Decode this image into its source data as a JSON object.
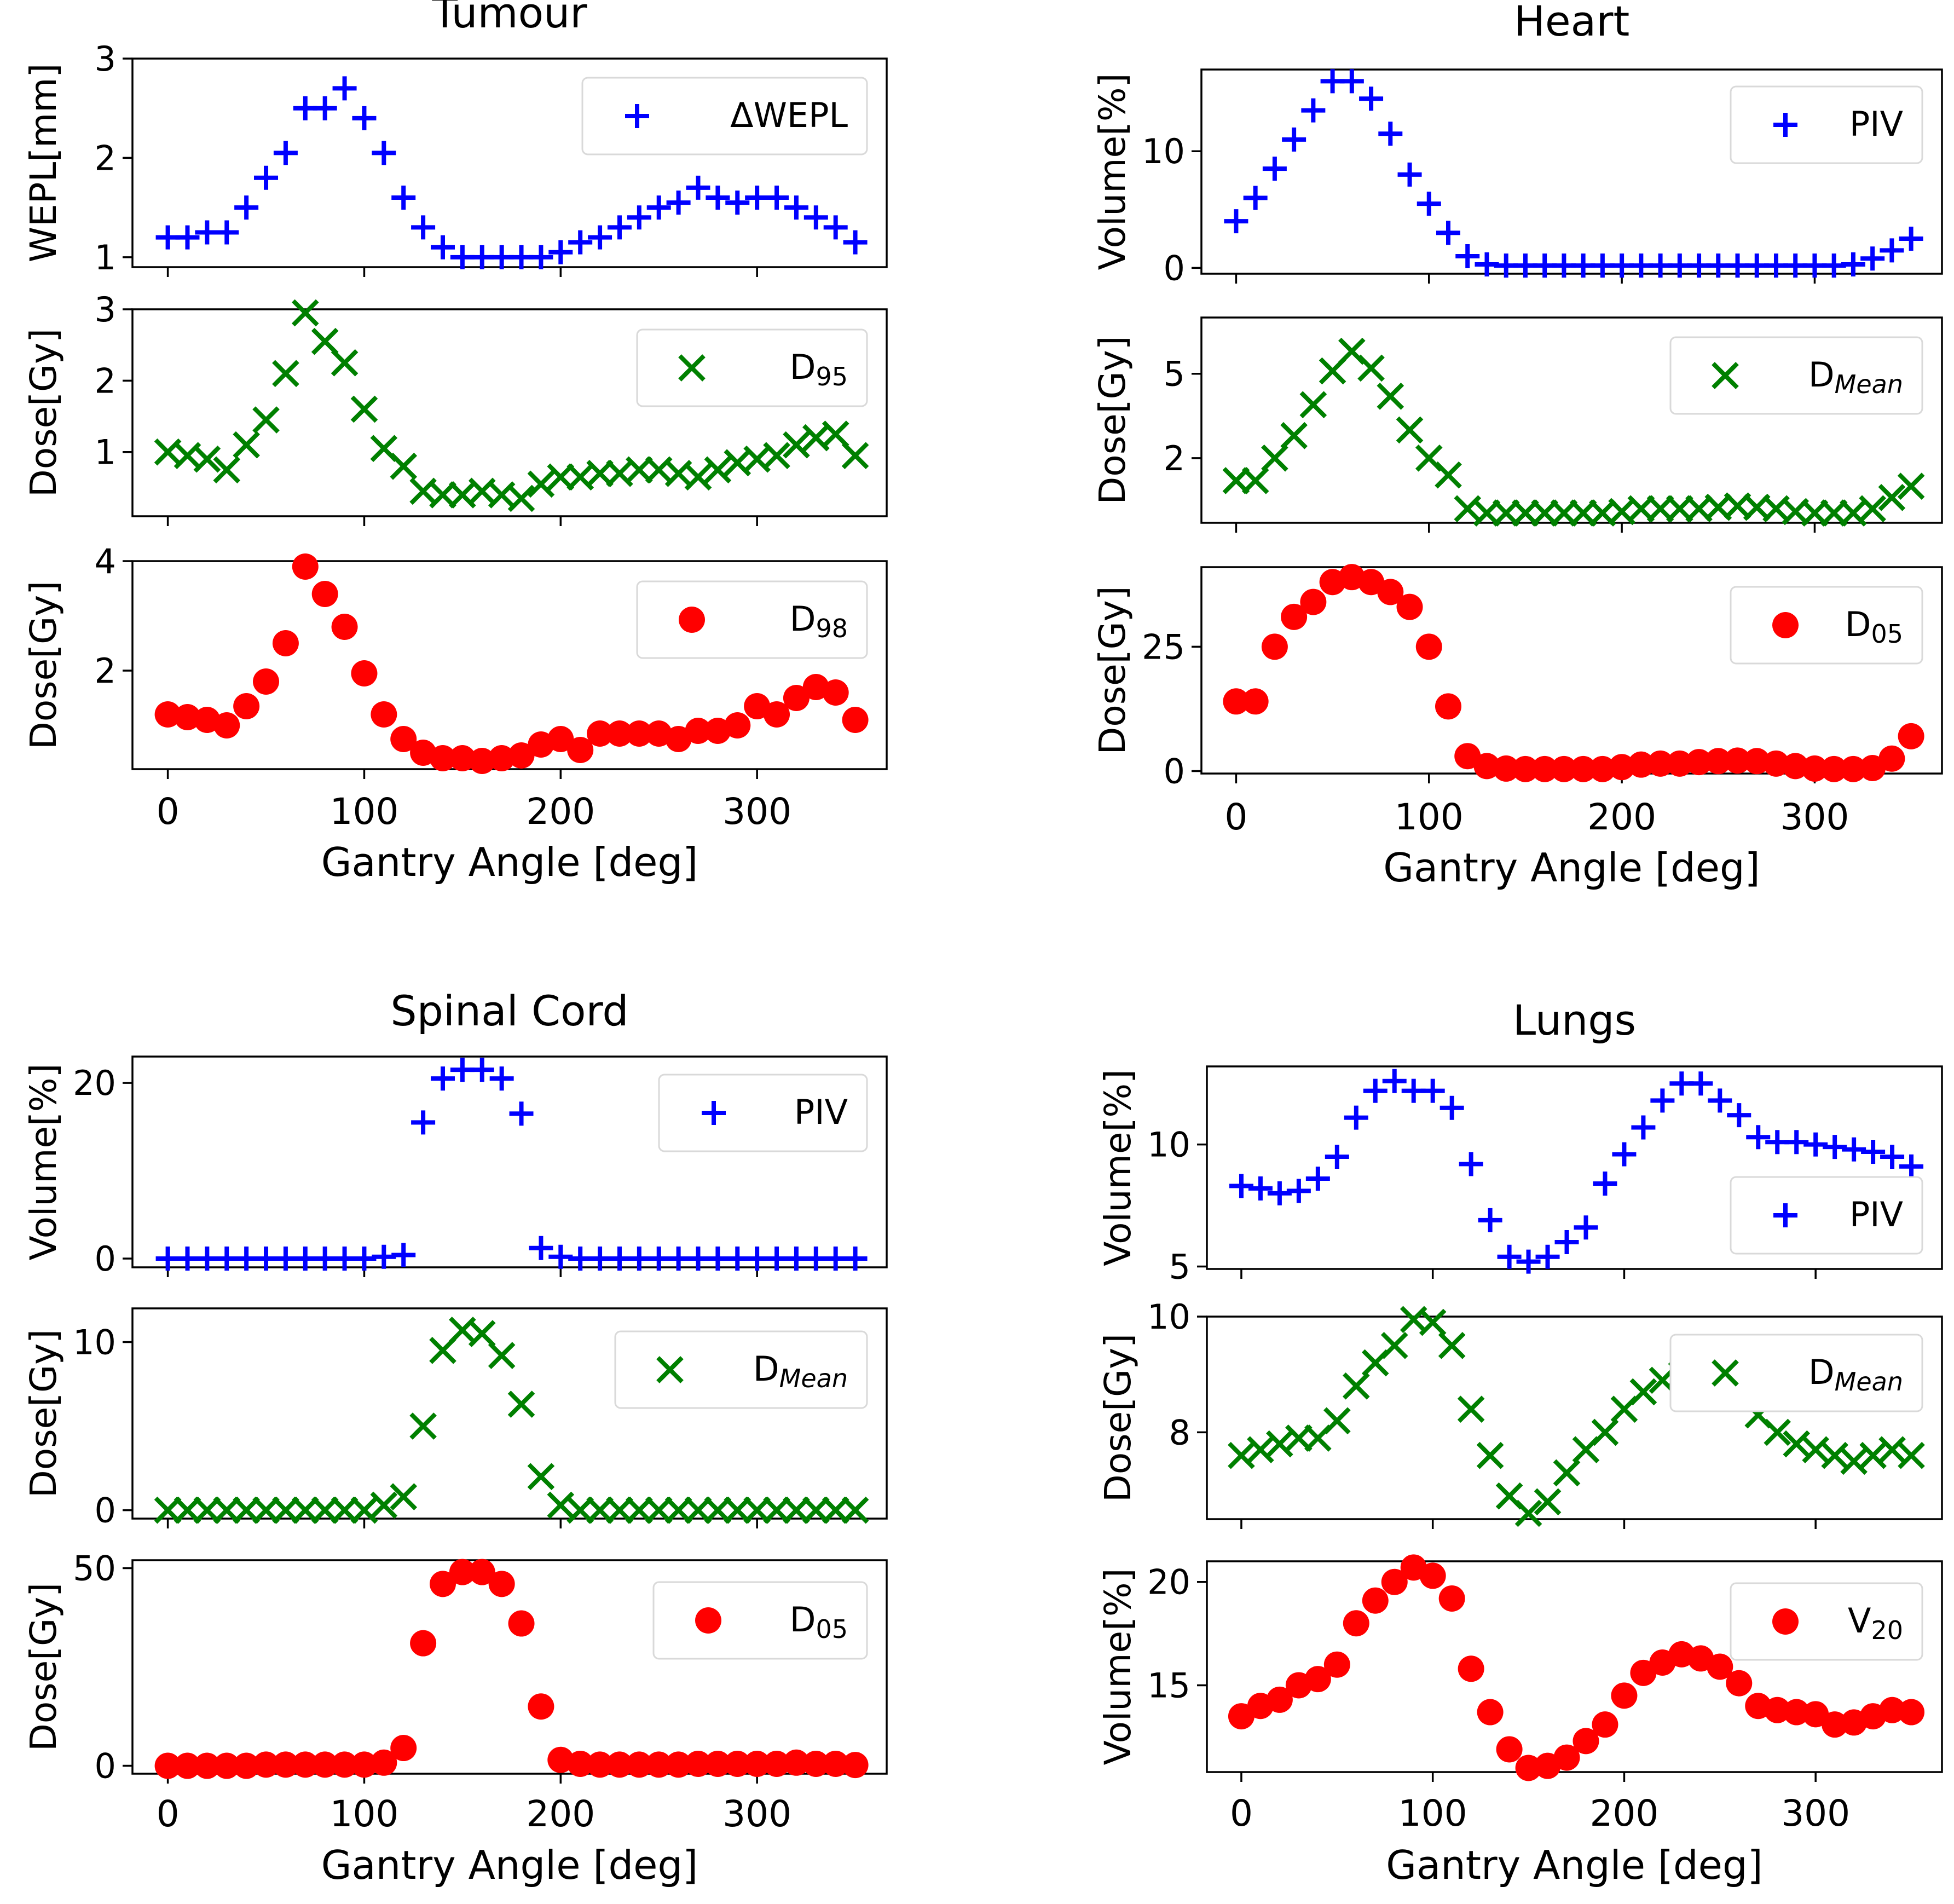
{
  "chart_data": [
    {
      "title": "Tumour",
      "type": "scatter",
      "xlabel": "Gantry Angle [deg]",
      "xticks": [
        "0",
        "100",
        "200",
        "300"
      ],
      "x": [
        0,
        10,
        20,
        30,
        40,
        50,
        60,
        70,
        80,
        90,
        100,
        110,
        120,
        130,
        140,
        150,
        160,
        170,
        180,
        190,
        200,
        210,
        220,
        230,
        240,
        250,
        260,
        270,
        280,
        290,
        300,
        310,
        320,
        330,
        340,
        350
      ],
      "panels": [
        {
          "ylabel": "WEPL[mm]",
          "ylim": [
            0.9,
            3.0
          ],
          "yticks": [
            1,
            2,
            3
          ],
          "series": [
            {
              "name": "ΔWEPL",
              "marker": "plus",
              "color": "#0000ff",
              "values": [
                1.2,
                1.2,
                1.25,
                1.25,
                1.5,
                1.8,
                2.05,
                2.5,
                2.5,
                2.7,
                2.4,
                2.05,
                1.6,
                1.3,
                1.1,
                1.0,
                1.0,
                1.0,
                1.0,
                1.0,
                1.05,
                1.15,
                1.2,
                1.3,
                1.4,
                1.5,
                1.55,
                1.7,
                1.6,
                1.55,
                1.6,
                1.6,
                1.5,
                1.4,
                1.3,
                1.15
              ]
            }
          ]
        },
        {
          "ylabel": "Dose[Gy]",
          "ylim": [
            0.1,
            3.0
          ],
          "yticks": [
            1,
            2,
            3
          ],
          "series": [
            {
              "name": "D95",
              "marker": "x",
              "color": "#008000",
              "values": [
                1.0,
                0.95,
                0.9,
                0.75,
                1.1,
                1.45,
                2.1,
                2.95,
                2.55,
                2.25,
                1.6,
                1.05,
                0.8,
                0.45,
                0.4,
                0.4,
                0.45,
                0.4,
                0.35,
                0.55,
                0.65,
                0.65,
                0.7,
                0.7,
                0.75,
                0.75,
                0.7,
                0.65,
                0.75,
                0.85,
                0.9,
                0.95,
                1.1,
                1.2,
                1.25,
                0.95
              ]
            }
          ]
        },
        {
          "ylabel": "Dose[Gy]",
          "ylim": [
            0.2,
            4.0
          ],
          "yticks": [
            2,
            4
          ],
          "series": [
            {
              "name": "D98",
              "marker": "circle",
              "color": "#ff0000",
              "values": [
                1.2,
                1.15,
                1.1,
                1.0,
                1.35,
                1.8,
                2.5,
                3.9,
                3.4,
                2.8,
                1.95,
                1.2,
                0.75,
                0.5,
                0.4,
                0.4,
                0.35,
                0.4,
                0.45,
                0.65,
                0.75,
                0.55,
                0.85,
                0.85,
                0.85,
                0.85,
                0.75,
                0.9,
                0.9,
                1.0,
                1.35,
                1.2,
                1.5,
                1.7,
                1.6,
                1.1
              ]
            }
          ]
        }
      ]
    },
    {
      "title": "Heart",
      "type": "scatter",
      "xlabel": "Gantry Angle [deg]",
      "xticks": [
        "0",
        "100",
        "200",
        "300"
      ],
      "x": [
        0,
        10,
        20,
        30,
        40,
        50,
        60,
        70,
        80,
        90,
        100,
        110,
        120,
        130,
        140,
        150,
        160,
        170,
        180,
        190,
        200,
        210,
        220,
        230,
        240,
        250,
        260,
        270,
        280,
        290,
        300,
        310,
        320,
        330,
        340,
        350
      ],
      "panels": [
        {
          "ylabel": "Volume[%]",
          "ylim": [
            -0.5,
            17.0
          ],
          "yticks": [
            0,
            10
          ],
          "series": [
            {
              "name": "PIV",
              "marker": "plus",
              "color": "#0000ff",
              "values": [
                4,
                6,
                8.5,
                11,
                13.5,
                16,
                16,
                14.5,
                11.5,
                8,
                5.5,
                3,
                1,
                0.3,
                0.2,
                0.2,
                0.2,
                0.2,
                0.2,
                0.2,
                0.2,
                0.2,
                0.2,
                0.2,
                0.2,
                0.2,
                0.2,
                0.2,
                0.2,
                0.2,
                0.2,
                0.2,
                0.3,
                0.8,
                1.5,
                2.5
              ]
            }
          ]
        },
        {
          "ylabel": "Dose[Gy]",
          "ylim": [
            -0.3,
            7.0
          ],
          "yticks": [
            2,
            5
          ],
          "series": [
            {
              "name": "DMean",
              "marker": "x",
              "color": "#008000",
              "values": [
                1.2,
                1.2,
                2.0,
                2.8,
                3.9,
                5.1,
                5.8,
                5.2,
                4.2,
                3.0,
                2.0,
                1.4,
                0.2,
                0.05,
                0.05,
                0.05,
                0.05,
                0.05,
                0.05,
                0.05,
                0.1,
                0.2,
                0.2,
                0.2,
                0.2,
                0.25,
                0.3,
                0.25,
                0.2,
                0.1,
                0.05,
                0.05,
                0.05,
                0.2,
                0.6,
                1.0
              ]
            }
          ]
        },
        {
          "ylabel": "Dose[Gy]",
          "ylim": [
            -0.5,
            41.0
          ],
          "yticks": [
            0,
            25
          ],
          "series": [
            {
              "name": "D05",
              "marker": "circle",
              "color": "#ff0000",
              "values": [
                14,
                14,
                25,
                31,
                34,
                38,
                39,
                38,
                36,
                33,
                25,
                13,
                3,
                1,
                0.5,
                0.4,
                0.4,
                0.4,
                0.4,
                0.4,
                0.8,
                1.3,
                1.5,
                1.5,
                1.8,
                2,
                2.1,
                2,
                1.5,
                1,
                0.5,
                0.4,
                0.4,
                0.6,
                2.5,
                7
              ]
            }
          ]
        }
      ]
    },
    {
      "title": "Spinal Cord",
      "type": "scatter",
      "xlabel": "Gantry Angle [deg]",
      "xticks": [
        "0",
        "100",
        "200",
        "300"
      ],
      "x": [
        0,
        10,
        20,
        30,
        40,
        50,
        60,
        70,
        80,
        90,
        100,
        110,
        120,
        130,
        140,
        150,
        160,
        170,
        180,
        190,
        200,
        210,
        220,
        230,
        240,
        250,
        260,
        270,
        280,
        290,
        300,
        310,
        320,
        330,
        340,
        350
      ],
      "panels": [
        {
          "ylabel": "Volume[%]",
          "ylim": [
            -1.0,
            23.0
          ],
          "yticks": [
            0,
            20
          ],
          "series": [
            {
              "name": "PIV",
              "marker": "plus",
              "color": "#0000ff",
              "values": [
                0,
                0,
                0,
                0,
                0,
                0,
                0,
                0,
                0,
                0,
                0,
                0.2,
                0.4,
                15.5,
                20.5,
                21.5,
                21.5,
                20.5,
                16.5,
                1.2,
                0.2,
                0,
                0,
                0,
                0,
                0,
                0,
                0,
                0,
                0,
                0,
                0,
                0,
                0,
                0,
                0
              ]
            }
          ]
        },
        {
          "ylabel": "Dose[Gy]",
          "ylim": [
            -0.5,
            12.0
          ],
          "yticks": [
            0,
            10
          ],
          "series": [
            {
              "name": "DMean",
              "marker": "x",
              "color": "#008000",
              "values": [
                0,
                0,
                0,
                0,
                0,
                0,
                0,
                0,
                0,
                0,
                0,
                0.3,
                0.8,
                5.0,
                9.5,
                10.7,
                10.5,
                9.2,
                6.3,
                2.0,
                0.3,
                0,
                0,
                0,
                0,
                0,
                0,
                0,
                0,
                0,
                0,
                0,
                0,
                0,
                0,
                0
              ]
            }
          ]
        },
        {
          "ylabel": "Dose[Gy]",
          "ylim": [
            -2.0,
            52.0
          ],
          "yticks": [
            0,
            50
          ],
          "series": [
            {
              "name": "D05",
              "marker": "circle",
              "color": "#ff0000",
              "values": [
                0,
                0,
                0,
                0,
                0,
                0.3,
                0.3,
                0.3,
                0.3,
                0.3,
                0.3,
                0.8,
                4.5,
                31,
                46,
                49,
                49,
                46,
                36,
                15,
                1.5,
                0.5,
                0.3,
                0.3,
                0.3,
                0.3,
                0.3,
                0.5,
                0.5,
                0.5,
                0.5,
                0.5,
                0.8,
                0.5,
                0.5,
                0.2
              ]
            }
          ]
        }
      ]
    },
    {
      "title": "Lungs",
      "type": "scatter",
      "xlabel": "Gantry Angle [deg]",
      "xticks": [
        "0",
        "100",
        "200",
        "300"
      ],
      "x": [
        0,
        10,
        20,
        30,
        40,
        50,
        60,
        70,
        80,
        90,
        100,
        110,
        120,
        130,
        140,
        150,
        160,
        170,
        180,
        190,
        200,
        210,
        220,
        230,
        240,
        250,
        260,
        270,
        280,
        290,
        300,
        310,
        320,
        330,
        340,
        350
      ],
      "panels": [
        {
          "ylabel": "Volume[%]",
          "ylim": [
            4.9,
            13.2
          ],
          "yticks": [
            5,
            10
          ],
          "series": [
            {
              "name": "PIV",
              "marker": "plus",
              "color": "#0000ff",
              "values": [
                8.3,
                8.2,
                8.0,
                8.1,
                8.6,
                9.5,
                11.1,
                12.2,
                12.6,
                12.2,
                12.2,
                11.5,
                9.2,
                6.9,
                5.4,
                5.2,
                5.4,
                6.0,
                6.6,
                8.4,
                9.6,
                10.7,
                11.8,
                12.5,
                12.5,
                11.8,
                11.2,
                10.3,
                10.1,
                10.1,
                10.0,
                9.9,
                9.8,
                9.7,
                9.5,
                9.1
              ]
            }
          ]
        },
        {
          "ylabel": "Dose[Gy]",
          "ylim": [
            6.5,
            10.0
          ],
          "yticks": [
            8,
            10
          ],
          "series": [
            {
              "name": "DMean",
              "marker": "x",
              "color": "#008000",
              "values": [
                7.6,
                7.7,
                7.8,
                7.9,
                7.9,
                8.2,
                8.8,
                9.2,
                9.5,
                9.95,
                9.9,
                9.5,
                8.4,
                7.6,
                6.9,
                6.6,
                6.8,
                7.3,
                7.7,
                8.0,
                8.4,
                8.7,
                8.9,
                9.0,
                9.0,
                9.0,
                8.6,
                8.3,
                8.0,
                7.8,
                7.7,
                7.6,
                7.5,
                7.6,
                7.7,
                7.6
              ]
            }
          ]
        },
        {
          "ylabel": "Volume[%]",
          "ylim": [
            10.8,
            21.0
          ],
          "yticks": [
            15,
            20
          ],
          "series": [
            {
              "name": "V20",
              "marker": "circle",
              "color": "#ff0000",
              "values": [
                13.5,
                14.0,
                14.3,
                15.0,
                15.3,
                16.0,
                18.0,
                19.1,
                20.0,
                20.7,
                20.3,
                19.2,
                15.8,
                13.7,
                11.9,
                11.0,
                11.1,
                11.5,
                12.3,
                13.1,
                14.5,
                15.6,
                16.1,
                16.5,
                16.3,
                15.9,
                15.1,
                14.0,
                13.8,
                13.7,
                13.6,
                13.1,
                13.2,
                13.5,
                13.8,
                13.7
              ]
            }
          ]
        }
      ]
    }
  ]
}
